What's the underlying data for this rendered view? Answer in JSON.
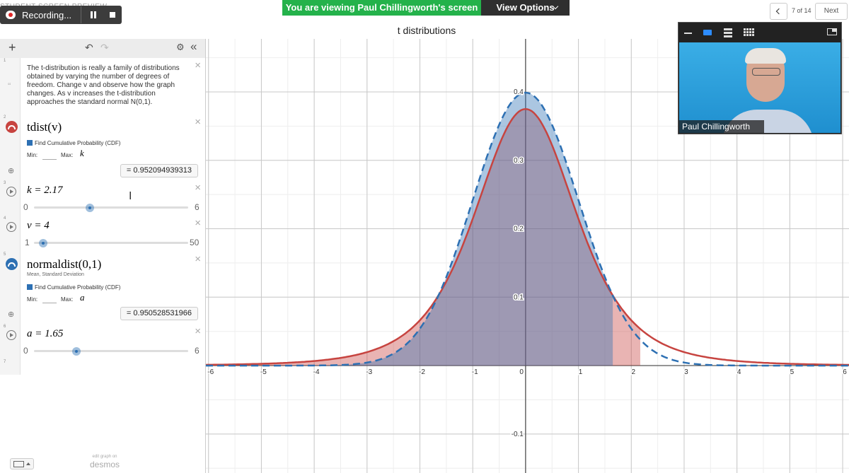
{
  "zoom": {
    "preview_label": "STUDENT SCREEN PREVIEW",
    "recording": "Recording...",
    "banner": "You are viewing Paul Chillingworth's screen",
    "view_options": "View Options",
    "page": "7 of 14",
    "next": "Next",
    "participant": "Paul Chillingworth"
  },
  "graph": {
    "title": "t distributions",
    "xlim": [
      -6.05,
      6.12
    ],
    "ylim": [
      -0.157,
      0.4775
    ],
    "xticks": [
      -6,
      -5,
      -4,
      -3,
      -2,
      -1,
      0,
      1,
      2,
      3,
      4,
      5,
      6
    ],
    "yticks": [
      -0.1,
      0.1,
      0.2,
      0.3,
      0.4
    ],
    "grid": true
  },
  "expressions": [
    {
      "number": 1,
      "note": "The t-distribution is really a family of distributions obtained by varying the number of degrees of freedom. Change v and observe how the graph changes. As v increases the t-distribution approaches the standard normal N(0,1)."
    },
    {
      "number": 2,
      "latex": "tdist(v)",
      "cdf": "Find Cumulative Probability (CDF)",
      "min_label": "Min:",
      "max_label": "Max:",
      "max": "k",
      "result": "= 0.952094939313",
      "color": "#c74440"
    },
    {
      "number": 3,
      "label": "k = 2.17",
      "value": 2.17,
      "min": 0,
      "max": 6
    },
    {
      "number": 4,
      "label": "v = 4",
      "value": 4,
      "min": 1,
      "max": 50
    },
    {
      "number": 5,
      "latex": "normaldist(0,1)",
      "subtitle": "Mean, Standard Deviation",
      "cdf": "Find Cumulative Probability (CDF)",
      "min_label": "Min:",
      "max_label": "Max:",
      "max": "a",
      "result": "= 0.950528531966",
      "color": "#2d70b3"
    },
    {
      "number": 6,
      "label": "a = 1.65",
      "value": 1.65,
      "min": 0,
      "max": 6
    },
    {
      "number": 7
    }
  ],
  "footer": {
    "edit": "edit graph on",
    "brand": "desmos"
  }
}
